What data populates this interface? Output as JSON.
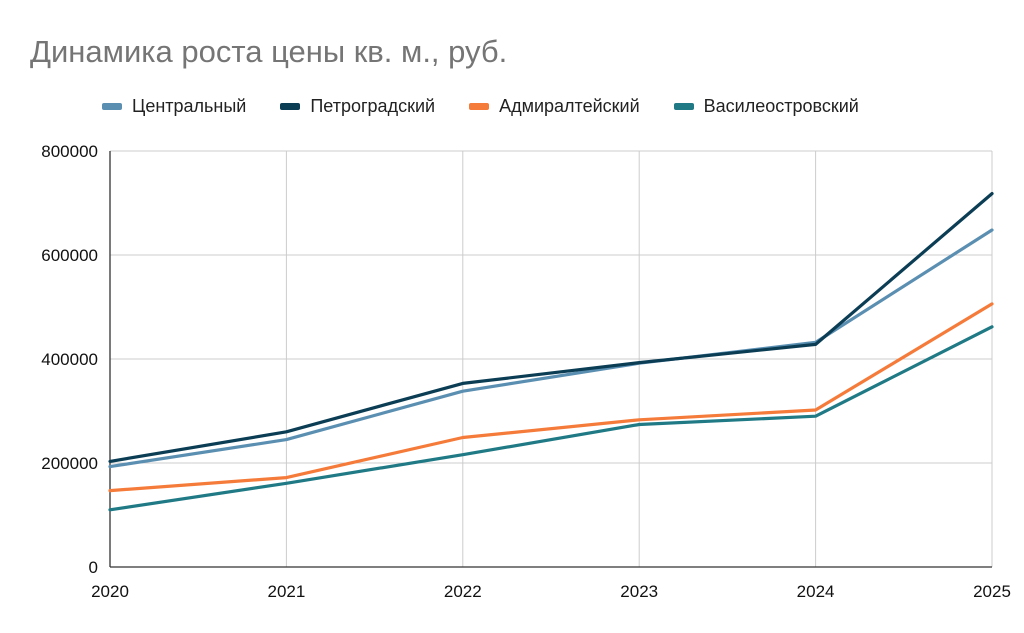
{
  "title": "Динамика роста цены кв. м., руб.",
  "legend": {
    "items": [
      {
        "label": "Центральный",
        "color": "#5b8fb2"
      },
      {
        "label": "Петроградский",
        "color": "#0b3d55"
      },
      {
        "label": "Адмиралтейский",
        "color": "#f57b3a"
      },
      {
        "label": "Василеостровский",
        "color": "#1f7a86"
      }
    ]
  },
  "chart_data": {
    "type": "line",
    "title": "Динамика роста цены кв. м., руб.",
    "xlabel": "",
    "ylabel": "",
    "x": [
      "2020",
      "2021",
      "2022",
      "2023",
      "2024",
      "2025"
    ],
    "y_ticks": [
      "0",
      "200000",
      "400000",
      "600000",
      "800000"
    ],
    "ylim": [
      0,
      800000
    ],
    "grid": true,
    "legend_position": "top",
    "series": [
      {
        "name": "Центральный",
        "color": "#5b8fb2",
        "values": [
          193000,
          245000,
          338000,
          392000,
          432000,
          648000
        ]
      },
      {
        "name": "Петроградский",
        "color": "#0b3d55",
        "values": [
          203000,
          260000,
          353000,
          393000,
          428000,
          718000
        ]
      },
      {
        "name": "Адмиралтейский",
        "color": "#f57b3a",
        "values": [
          147000,
          172000,
          249000,
          283000,
          302000,
          506000
        ]
      },
      {
        "name": "Василеостровский",
        "color": "#1f7a86",
        "values": [
          110000,
          161000,
          216000,
          274000,
          290000,
          462000
        ]
      }
    ]
  }
}
